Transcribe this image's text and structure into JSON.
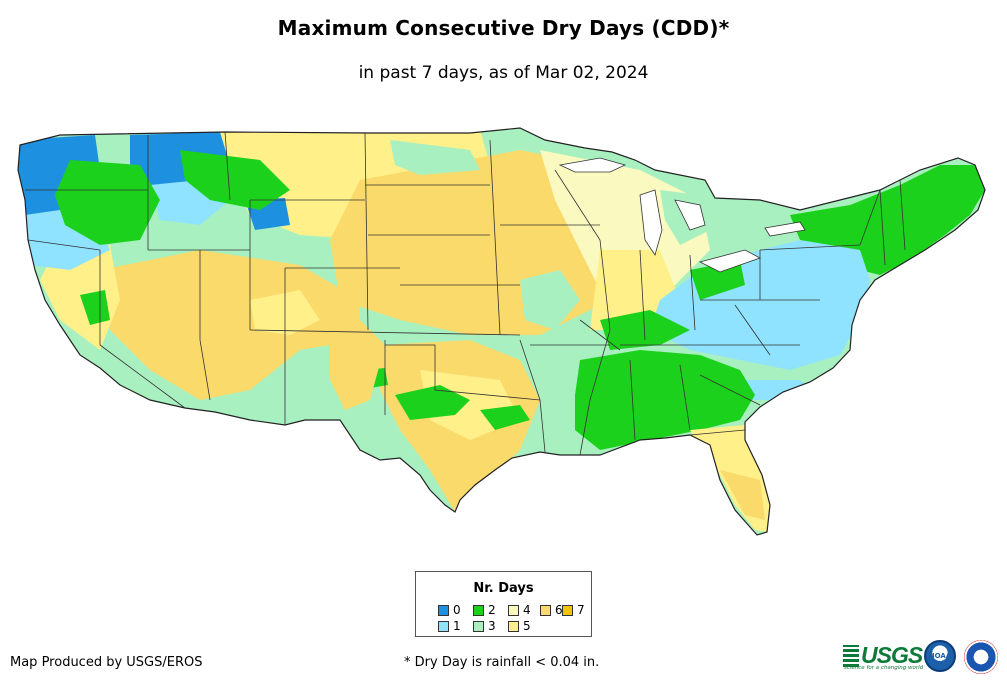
{
  "title": "Maximum Consecutive Dry Days (CDD)*",
  "subtitle": "in past 7 days, as of Mar 02, 2024",
  "legend": {
    "title": "Nr. Days",
    "items": [
      {
        "label": "0",
        "color": "#1e90e0"
      },
      {
        "label": "1",
        "color": "#8fe3ff"
      },
      {
        "label": "2",
        "color": "#1cd11c"
      },
      {
        "label": "3",
        "color": "#a8f0c0"
      },
      {
        "label": "4",
        "color": "#fafac0"
      },
      {
        "label": "5",
        "color": "#fff08a"
      },
      {
        "label": "6",
        "color": "#fada6a"
      },
      {
        "label": "7",
        "color": "#f5c400"
      }
    ]
  },
  "credit": "Map Produced by USGS/EROS",
  "footnote": "* Dry Day is rainfall < 0.04 in.",
  "logos": {
    "usgs": "USGS",
    "usgs_tagline": "science for a changing world",
    "noaa": "NOAA"
  }
}
